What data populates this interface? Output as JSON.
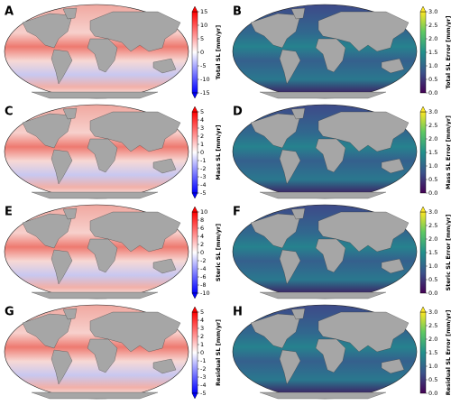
{
  "panels": [
    {
      "letter": "A",
      "colormap": "bwr",
      "colorbar": {
        "label": "Total SL [mm/yr]",
        "lim": [
          -15,
          15
        ],
        "ticks": [
          -15,
          -10,
          -5,
          0,
          5,
          10,
          15
        ]
      }
    },
    {
      "letter": "B",
      "colormap": "viridis",
      "colorbar": {
        "label": "Total SL Error [mm/yr]",
        "lim": [
          0,
          3
        ],
        "ticks": [
          {
            "value": 0,
            "label": "0.0"
          },
          {
            "value": 0.5,
            "label": "0.5"
          },
          {
            "value": 1,
            "label": "1.0"
          },
          {
            "value": 1.5,
            "label": "1.5"
          },
          {
            "value": 2,
            "label": "2.0"
          },
          {
            "value": 2.5,
            "label": "2.5"
          },
          {
            "value": 3,
            "label": "3.0"
          }
        ]
      }
    },
    {
      "letter": "C",
      "colormap": "bwr",
      "colorbar": {
        "label": "Mass SL [mm/yr]",
        "lim": [
          -5,
          5
        ],
        "ticks": [
          -5,
          -4,
          -3,
          -2,
          -1,
          0,
          1,
          2,
          3,
          4,
          5
        ]
      }
    },
    {
      "letter": "D",
      "colormap": "viridis",
      "colorbar": {
        "label": "Mass SL Error [mm/yr]",
        "lim": [
          0,
          3
        ],
        "ticks": [
          {
            "value": 0,
            "label": "0.0"
          },
          {
            "value": 0.5,
            "label": "0.5"
          },
          {
            "value": 1,
            "label": "1.0"
          },
          {
            "value": 1.5,
            "label": "1.5"
          },
          {
            "value": 2,
            "label": "2.0"
          },
          {
            "value": 2.5,
            "label": "2.5"
          },
          {
            "value": 3,
            "label": "3.0"
          }
        ]
      }
    },
    {
      "letter": "E",
      "colormap": "bwr",
      "colorbar": {
        "label": "Steric SL [mm/yr]",
        "lim": [
          -10,
          10
        ],
        "ticks": [
          -10,
          -8,
          -6,
          -4,
          -2,
          0,
          2,
          4,
          6,
          8,
          10
        ]
      }
    },
    {
      "letter": "F",
      "colormap": "viridis",
      "colorbar": {
        "label": "Steric SL Error [mm/yr]",
        "lim": [
          0,
          3
        ],
        "ticks": [
          {
            "value": 0,
            "label": "0.0"
          },
          {
            "value": 0.5,
            "label": "0.5"
          },
          {
            "value": 1,
            "label": "1.0"
          },
          {
            "value": 1.5,
            "label": "1.5"
          },
          {
            "value": 2,
            "label": "2.0"
          },
          {
            "value": 2.5,
            "label": "2.5"
          },
          {
            "value": 3,
            "label": "3.0"
          }
        ]
      }
    },
    {
      "letter": "G",
      "colormap": "bwr",
      "colorbar": {
        "label": "Residual SL [mm/yr]",
        "lim": [
          -5,
          5
        ],
        "ticks": [
          -5,
          -4,
          -3,
          -2,
          -1,
          0,
          1,
          2,
          3,
          4,
          5
        ]
      }
    },
    {
      "letter": "H",
      "colormap": "viridis",
      "colorbar": {
        "label": "Residual SL Error [mm/yr]",
        "lim": [
          0,
          3
        ],
        "ticks": [
          {
            "value": 0,
            "label": "0.0"
          },
          {
            "value": 0.5,
            "label": "0.5"
          },
          {
            "value": 1,
            "label": "1.0"
          },
          {
            "value": 1.5,
            "label": "1.5"
          },
          {
            "value": 2,
            "label": "2.0"
          },
          {
            "value": 2.5,
            "label": "2.5"
          },
          {
            "value": 3,
            "label": "3.0"
          }
        ]
      }
    }
  ]
}
